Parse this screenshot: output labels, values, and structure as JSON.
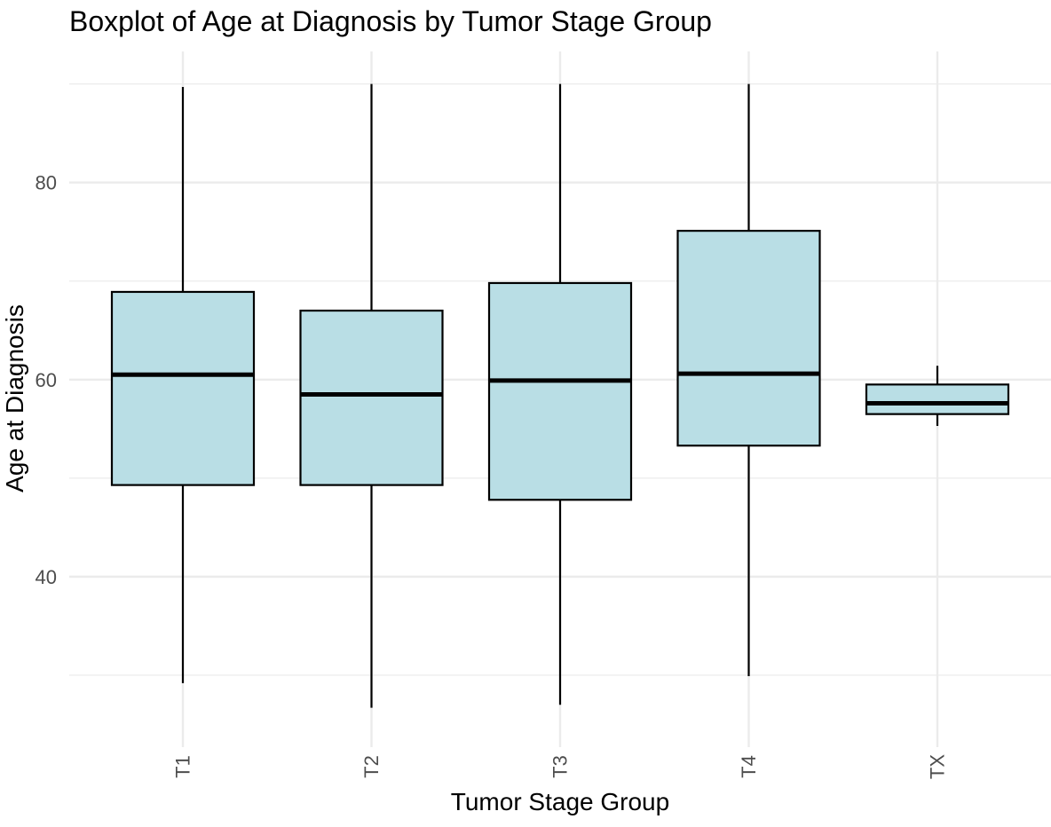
{
  "chart_data": {
    "type": "box",
    "title": "Boxplot of Age at Diagnosis by Tumor Stage Group",
    "xlabel": "Tumor Stage Group",
    "ylabel": "Age at Diagnosis",
    "categories": [
      "T1",
      "T2",
      "T3",
      "T4",
      "TX"
    ],
    "boxes": [
      {
        "category": "T1",
        "lower_whisker": 29.2,
        "q1": 49.3,
        "median": 60.5,
        "q3": 68.9,
        "upper_whisker": 89.7
      },
      {
        "category": "T2",
        "lower_whisker": 26.7,
        "q1": 49.3,
        "median": 58.5,
        "q3": 67.0,
        "upper_whisker": 90.0
      },
      {
        "category": "T3",
        "lower_whisker": 27.0,
        "q1": 47.8,
        "median": 59.9,
        "q3": 69.8,
        "upper_whisker": 90.0
      },
      {
        "category": "T4",
        "lower_whisker": 29.9,
        "q1": 53.3,
        "median": 60.6,
        "q3": 75.1,
        "upper_whisker": 90.0
      },
      {
        "category": "TX",
        "lower_whisker": 55.3,
        "q1": 56.5,
        "median": 57.6,
        "q3": 59.5,
        "upper_whisker": 61.4
      }
    ],
    "yticks": [
      40,
      60,
      80
    ],
    "ylim": [
      22.7,
      93.3
    ],
    "grid": true,
    "legend": "none",
    "box_fill": "#b9dee5",
    "box_stroke": "#000000",
    "grid_color": "#ebebeb",
    "tick_label_color": "#4d4d4d"
  }
}
